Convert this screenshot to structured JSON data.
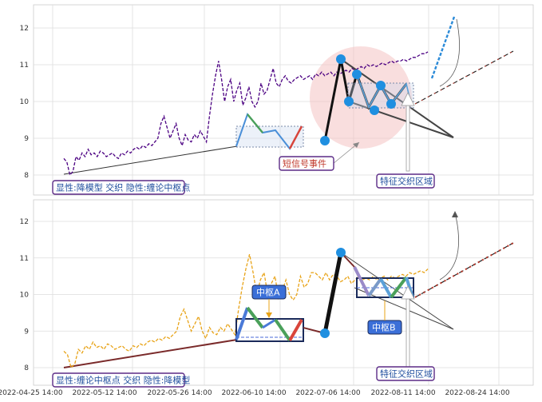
{
  "chart_data": [
    {
      "type": "line",
      "panel": "top",
      "x_ticks": [
        "2022-04-25 14:00",
        "2022-05-12 14:00",
        "2022-05-26 14:00",
        "2022-06-10 14:00",
        "2022-07-06 14:00",
        "2022-08-11 14:00",
        "2022-08-24 14:00"
      ],
      "y_ticks": [
        8,
        9,
        10,
        11,
        12
      ],
      "ylim": [
        7.6,
        12.6
      ],
      "grid": true,
      "series": [
        {
          "style": "dashed-purple",
          "color": "#4b0082",
          "x": [
            0.0,
            0.4,
            0.8,
            1.2,
            1.6,
            2.0,
            2.4,
            2.8,
            3.2,
            3.6,
            4.0,
            4.4,
            4.8,
            5.2,
            5.6,
            6.0,
            6.4,
            6.8,
            7.2,
            7.6,
            8.0,
            8.4,
            8.8,
            9.2,
            9.6,
            10.0,
            10.4,
            10.8,
            11.2,
            11.6,
            12.0,
            12.4,
            12.8,
            13.2,
            13.6,
            14.0,
            14.4,
            14.8,
            15.2,
            15.6,
            16.0,
            16.4,
            16.8,
            17.2,
            17.6,
            18.0,
            18.4,
            18.8,
            19.2,
            19.6,
            20.0,
            20.4,
            20.8,
            21.2,
            21.6,
            22.0,
            22.4,
            22.8,
            23.2,
            23.6,
            24.0,
            24.4,
            24.8,
            25.2,
            25.6,
            26.0,
            26.4,
            26.8,
            27.2,
            27.6,
            28.0,
            28.4,
            28.8,
            29.2,
            29.6,
            30.0,
            30.4,
            30.8,
            31.2,
            31.6,
            32.0,
            32.4,
            32.8,
            33.2,
            33.6,
            34.0,
            34.4,
            34.8,
            35.2,
            35.6,
            36.0,
            36.4,
            36.8,
            37.2,
            37.6,
            38.0,
            38.4,
            38.8,
            39.2,
            39.6,
            40.0,
            40.4,
            40.8,
            41.2,
            41.6,
            42.0,
            42.4,
            42.8,
            43.2,
            43.6,
            44.0,
            44.4,
            44.8,
            45.2,
            45.6,
            46.0,
            46.4,
            46.8,
            47.2,
            47.6,
            48.0
          ],
          "y": [
            8.45,
            8.35,
            8.0,
            8.1,
            8.5,
            8.4,
            8.6,
            8.5,
            8.7,
            8.55,
            8.6,
            8.5,
            8.65,
            8.6,
            8.5,
            8.55,
            8.6,
            8.5,
            8.45,
            8.6,
            8.55,
            8.65,
            8.6,
            8.7,
            8.75,
            8.7,
            8.8,
            8.75,
            8.85,
            8.8,
            8.9,
            9.0,
            9.4,
            9.6,
            9.3,
            9.0,
            9.2,
            9.4,
            9.0,
            8.8,
            9.1,
            8.95,
            8.9,
            9.1,
            9.0,
            9.2,
            9.05,
            8.9,
            9.6,
            10.2,
            10.7,
            11.1,
            10.6,
            10.0,
            10.4,
            10.6,
            10.0,
            10.3,
            10.5,
            9.9,
            10.1,
            10.4,
            10.0,
            9.85,
            10.0,
            10.5,
            10.2,
            10.3,
            10.6,
            10.9,
            10.5,
            10.4,
            10.6,
            10.7,
            10.55,
            10.5,
            10.6,
            10.65,
            10.7,
            10.6,
            10.65,
            10.7,
            10.6,
            10.75,
            10.7,
            10.8,
            10.7,
            10.75,
            10.8,
            10.7,
            10.8,
            10.75,
            10.8,
            10.85,
            10.8,
            10.9,
            10.85,
            10.9,
            10.95,
            10.9,
            11.0,
            10.95,
            11.0,
            10.95,
            11.0,
            11.05,
            11.0,
            11.05,
            11.1,
            11.05,
            11.1,
            11.1,
            11.15,
            11.1,
            11.15,
            11.2,
            11.2,
            11.25,
            11.3,
            11.3,
            11.35
          ]
        }
      ],
      "labels": [
        {
          "text": "显性:降模型 交织 隐性:缠论中枢点",
          "color": "#1f4e9e"
        },
        {
          "text": "短信号事件",
          "color": "#c0392b"
        },
        {
          "text": "特征交织区域",
          "color": "#1f4e9e"
        }
      ]
    },
    {
      "type": "line",
      "panel": "bottom",
      "x_ticks": [
        "2022-04-25 14:00",
        "2022-05-12 14:00",
        "2022-05-26 14:00",
        "2022-06-10 14:00",
        "2022-07-06 14:00",
        "2022-08-11 14:00",
        "2022-08-24 14:00"
      ],
      "y_ticks": [
        8,
        9,
        10,
        11,
        12
      ],
      "ylim": [
        7.6,
        12.6
      ],
      "grid": true,
      "series": [
        {
          "style": "dashed-orange",
          "color": "#e8a317",
          "x": [
            0.0,
            0.4,
            0.8,
            1.2,
            1.6,
            2.0,
            2.4,
            2.8,
            3.2,
            3.6,
            4.0,
            4.4,
            4.8,
            5.2,
            5.6,
            6.0,
            6.4,
            6.8,
            7.2,
            7.6,
            8.0,
            8.4,
            8.8,
            9.2,
            9.6,
            10.0,
            10.4,
            10.8,
            11.2,
            11.6,
            12.0,
            12.4,
            12.8,
            13.2,
            13.6,
            14.0,
            14.4,
            14.8,
            15.2,
            15.6,
            16.0,
            16.4,
            16.8,
            17.2,
            17.6,
            18.0,
            18.4,
            18.8,
            19.2,
            19.6,
            20.0,
            20.4,
            20.8,
            21.2,
            21.6,
            22.0,
            22.4,
            22.8,
            23.2,
            23.6,
            24.0,
            24.4,
            24.8,
            25.2,
            25.6,
            26.0,
            26.4,
            26.8,
            27.2,
            27.6,
            28.0,
            28.4,
            28.8,
            29.2,
            29.6,
            30.0,
            30.4,
            30.8,
            31.2,
            31.6,
            32.0,
            32.4,
            32.8,
            33.2,
            33.6,
            34.0,
            34.4,
            34.8,
            35.2,
            35.6,
            36.0,
            36.4,
            36.8,
            37.2,
            37.6,
            38.0,
            38.4,
            38.8,
            39.2,
            39.6,
            40.0
          ],
          "y": [
            8.45,
            8.35,
            8.0,
            8.1,
            8.5,
            8.4,
            8.6,
            8.5,
            8.7,
            8.55,
            8.6,
            8.5,
            8.65,
            8.6,
            8.5,
            8.55,
            8.6,
            8.5,
            8.45,
            8.6,
            8.55,
            8.65,
            8.6,
            8.7,
            8.75,
            8.7,
            8.8,
            8.75,
            8.85,
            8.8,
            8.9,
            9.0,
            9.4,
            9.6,
            9.3,
            9.0,
            9.2,
            9.4,
            9.0,
            8.8,
            9.1,
            8.95,
            8.9,
            9.1,
            9.0,
            9.2,
            9.05,
            8.9,
            9.6,
            10.2,
            10.7,
            11.1,
            10.6,
            10.0,
            10.4,
            10.6,
            10.0,
            10.3,
            10.5,
            9.9,
            10.1,
            10.4,
            10.0,
            9.85,
            10.0,
            10.5,
            10.2,
            10.3,
            10.6,
            10.6,
            10.5,
            10.4,
            10.6,
            10.4,
            10.55,
            10.5,
            10.35,
            10.4,
            10.5,
            10.3,
            10.4,
            10.5,
            10.4,
            10.45,
            10.4,
            10.5,
            10.4,
            10.45,
            10.5,
            10.4,
            10.5,
            10.45,
            10.5,
            10.55,
            10.5,
            10.6,
            10.55,
            10.6,
            10.65,
            10.6,
            10.7
          ]
        }
      ],
      "labels": [
        {
          "text": "中枢A",
          "color": "#ffffff"
        },
        {
          "text": "中枢B",
          "color": "#ffffff"
        },
        {
          "text": "显性:缠论中枢点 交织 隐性:降模型",
          "color": "#1f4e9e"
        },
        {
          "text": "特征交织区域",
          "color": "#1f4e9e"
        }
      ]
    }
  ],
  "colors": {
    "purple_border": "#5b2a86",
    "blue_marker": "#1f8fe0",
    "highlight_circle": "#f4c2c2",
    "label_blue_fill": "#3b6fd8"
  }
}
